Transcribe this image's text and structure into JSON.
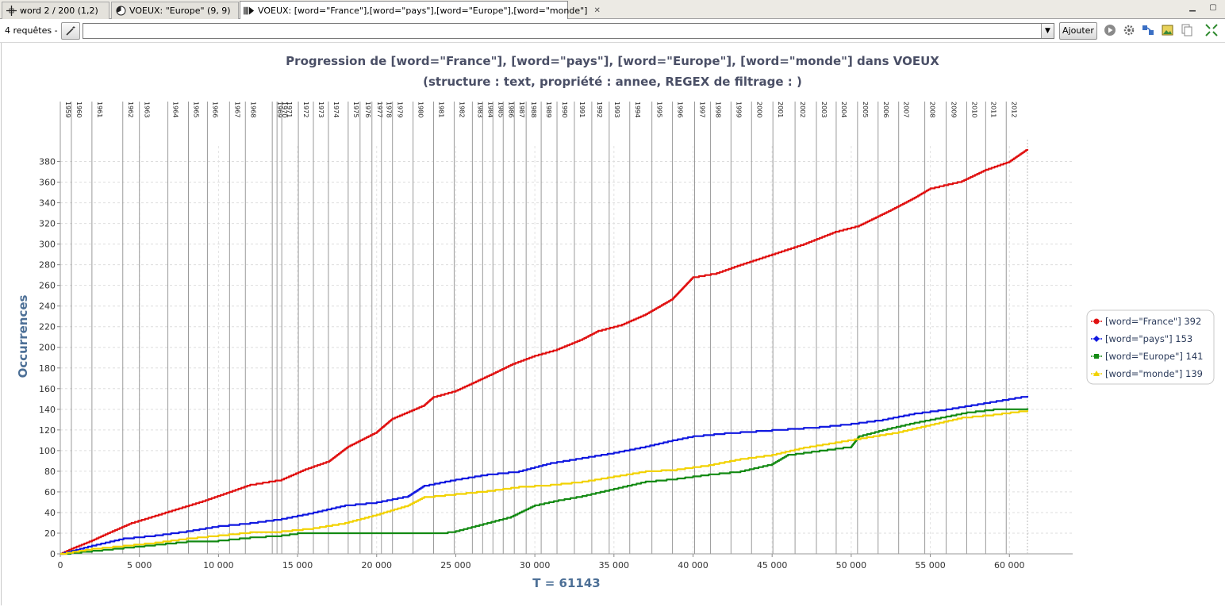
{
  "tabs": [
    {
      "label": "word 2 / 200 (1,2)",
      "icon": "crosshair-icon"
    },
    {
      "label": "VOEUX: \"Europe\" (9, 9)",
      "icon": "pie-icon"
    },
    {
      "label": "VOEUX: [word=\"France\"],[word=\"pays\"],[word=\"Europe\"],[word=\"monde\"]",
      "icon": "progression-icon",
      "close": "✕"
    }
  ],
  "toolbar": {
    "requests_label": "4 requêtes -",
    "query_value": "",
    "add_label": "Ajouter"
  },
  "chart_data": {
    "type": "line",
    "title": "Progression de [word=\"France\"], [word=\"pays\"], [word=\"Europe\"], [word=\"monde\"] dans VOEUX",
    "subtitle": "(structure :  text, propriété :  annee, REGEX de filtrage : )",
    "xlabel": "T = 61143",
    "ylabel": "Occurrences",
    "xlim": [
      0,
      64000
    ],
    "ylim": [
      0,
      395
    ],
    "x_ticks": [
      0,
      5000,
      10000,
      15000,
      20000,
      25000,
      30000,
      35000,
      40000,
      45000,
      50000,
      55000,
      60000
    ],
    "x_tick_labels": [
      "0",
      "5 000",
      "10 000",
      "15 000",
      "20 000",
      "25 000",
      "30 000",
      "35 000",
      "40 000",
      "45 000",
      "50 000",
      "55 000",
      "60 000"
    ],
    "y_ticks": [
      0,
      20,
      40,
      60,
      80,
      100,
      120,
      140,
      160,
      180,
      200,
      220,
      240,
      260,
      280,
      300,
      320,
      340,
      360,
      380
    ],
    "grid": true,
    "legend_position": "right",
    "year_markers": [
      {
        "label": "1959",
        "x": 0
      },
      {
        "label": "1960",
        "x": 700
      },
      {
        "label": "1961",
        "x": 2000
      },
      {
        "label": "1962",
        "x": 3950
      },
      {
        "label": "1963",
        "x": 5000
      },
      {
        "label": "1964",
        "x": 6800
      },
      {
        "label": "1965",
        "x": 8100
      },
      {
        "label": "1966",
        "x": 9300
      },
      {
        "label": "1967",
        "x": 10700
      },
      {
        "label": "1968",
        "x": 11700
      },
      {
        "label": "1969",
        "x": 13400
      },
      {
        "label": "1970",
        "x": 13700
      },
      {
        "label": "1971",
        "x": 14000
      },
      {
        "label": "1972",
        "x": 15050
      },
      {
        "label": "1973",
        "x": 16000
      },
      {
        "label": "1974",
        "x": 16950
      },
      {
        "label": "1975",
        "x": 18200
      },
      {
        "label": "1976",
        "x": 18950
      },
      {
        "label": "1977",
        "x": 19700
      },
      {
        "label": "1978",
        "x": 20300
      },
      {
        "label": "1979",
        "x": 21000
      },
      {
        "label": "1980",
        "x": 22300
      },
      {
        "label": "1981",
        "x": 23600
      },
      {
        "label": "1982",
        "x": 24900
      },
      {
        "label": "1983",
        "x": 26050
      },
      {
        "label": "1984",
        "x": 26700
      },
      {
        "label": "1985",
        "x": 27350
      },
      {
        "label": "1986",
        "x": 28000
      },
      {
        "label": "1987",
        "x": 28700
      },
      {
        "label": "1988",
        "x": 29450
      },
      {
        "label": "1989",
        "x": 30400
      },
      {
        "label": "1990",
        "x": 31400
      },
      {
        "label": "1991",
        "x": 32500
      },
      {
        "label": "1992",
        "x": 33600
      },
      {
        "label": "1993",
        "x": 34700
      },
      {
        "label": "1994",
        "x": 36000
      },
      {
        "label": "1995",
        "x": 37400
      },
      {
        "label": "1996",
        "x": 38700
      },
      {
        "label": "1997",
        "x": 40100
      },
      {
        "label": "1998",
        "x": 41100
      },
      {
        "label": "1999",
        "x": 42400
      },
      {
        "label": "2000",
        "x": 43700
      },
      {
        "label": "2001",
        "x": 45050
      },
      {
        "label": "2002",
        "x": 46450
      },
      {
        "label": "2003",
        "x": 47800
      },
      {
        "label": "2004",
        "x": 49050
      },
      {
        "label": "2005",
        "x": 50400
      },
      {
        "label": "2006",
        "x": 51700
      },
      {
        "label": "2007",
        "x": 53000
      },
      {
        "label": "2008",
        "x": 54650
      },
      {
        "label": "2009",
        "x": 56000
      },
      {
        "label": "2010",
        "x": 57300
      },
      {
        "label": "2011",
        "x": 58500
      },
      {
        "label": "2012",
        "x": 59800
      }
    ],
    "series": [
      {
        "name": "[word=\"France\"] 392",
        "color": "#e01010",
        "marker": "circle",
        "points": [
          [
            0,
            0
          ],
          [
            700,
            5
          ],
          [
            2000,
            13
          ],
          [
            3000,
            20
          ],
          [
            4500,
            30
          ],
          [
            6000,
            37
          ],
          [
            7500,
            44
          ],
          [
            9000,
            51
          ],
          [
            10700,
            60
          ],
          [
            12000,
            67
          ],
          [
            14000,
            72
          ],
          [
            15500,
            82
          ],
          [
            17000,
            90
          ],
          [
            18200,
            104
          ],
          [
            20000,
            118
          ],
          [
            21000,
            131
          ],
          [
            23000,
            144
          ],
          [
            23600,
            152
          ],
          [
            25000,
            158
          ],
          [
            26000,
            165
          ],
          [
            27400,
            175
          ],
          [
            28600,
            184
          ],
          [
            30000,
            192
          ],
          [
            31400,
            198
          ],
          [
            33000,
            208
          ],
          [
            34000,
            216
          ],
          [
            35500,
            222
          ],
          [
            37000,
            232
          ],
          [
            38700,
            247
          ],
          [
            40000,
            268
          ],
          [
            41500,
            272
          ],
          [
            43000,
            280
          ],
          [
            45000,
            290
          ],
          [
            47000,
            300
          ],
          [
            49000,
            312
          ],
          [
            50500,
            318
          ],
          [
            52500,
            333
          ],
          [
            54000,
            345
          ],
          [
            55000,
            354
          ],
          [
            57000,
            361
          ],
          [
            58500,
            372
          ],
          [
            60000,
            380
          ],
          [
            61143,
            392
          ]
        ]
      },
      {
        "name": "[word=\"pays\"] 153",
        "color": "#1018e0",
        "marker": "diamond",
        "points": [
          [
            0,
            0
          ],
          [
            2000,
            8
          ],
          [
            4000,
            15
          ],
          [
            6000,
            18
          ],
          [
            8000,
            22
          ],
          [
            10000,
            27
          ],
          [
            12000,
            30
          ],
          [
            14000,
            34
          ],
          [
            16000,
            40
          ],
          [
            18000,
            47
          ],
          [
            20000,
            50
          ],
          [
            22000,
            56
          ],
          [
            23000,
            66
          ],
          [
            25000,
            72
          ],
          [
            27000,
            77
          ],
          [
            29000,
            80
          ],
          [
            31000,
            88
          ],
          [
            33000,
            93
          ],
          [
            35000,
            98
          ],
          [
            37000,
            104
          ],
          [
            38700,
            110
          ],
          [
            40000,
            114
          ],
          [
            42000,
            117
          ],
          [
            45000,
            120
          ],
          [
            48000,
            123
          ],
          [
            50000,
            126
          ],
          [
            52000,
            130
          ],
          [
            54000,
            136
          ],
          [
            56000,
            140
          ],
          [
            58000,
            145
          ],
          [
            61143,
            153
          ]
        ]
      },
      {
        "name": "[word=\"Europe\"] 141",
        "color": "#138a13",
        "marker": "square",
        "points": [
          [
            0,
            0
          ],
          [
            2000,
            3
          ],
          [
            4000,
            6
          ],
          [
            6000,
            9
          ],
          [
            8000,
            12
          ],
          [
            10000,
            13
          ],
          [
            12000,
            16
          ],
          [
            14000,
            18
          ],
          [
            15000,
            20
          ],
          [
            18000,
            20
          ],
          [
            21000,
            20
          ],
          [
            24000,
            20
          ],
          [
            25000,
            22
          ],
          [
            26000,
            26
          ],
          [
            27000,
            30
          ],
          [
            28500,
            36
          ],
          [
            30000,
            47
          ],
          [
            31500,
            52
          ],
          [
            33000,
            56
          ],
          [
            35000,
            63
          ],
          [
            37000,
            70
          ],
          [
            39000,
            73
          ],
          [
            41000,
            77
          ],
          [
            43000,
            80
          ],
          [
            45000,
            87
          ],
          [
            46000,
            96
          ],
          [
            48000,
            100
          ],
          [
            50000,
            104
          ],
          [
            50500,
            114
          ],
          [
            52000,
            120
          ],
          [
            54000,
            127
          ],
          [
            56000,
            133
          ],
          [
            57300,
            137
          ],
          [
            59000,
            140
          ],
          [
            61143,
            141
          ]
        ]
      },
      {
        "name": "[word=\"monde\"] 139",
        "color": "#f2d200",
        "marker": "triangle",
        "points": [
          [
            0,
            0
          ],
          [
            2000,
            5
          ],
          [
            4000,
            8
          ],
          [
            6000,
            11
          ],
          [
            8000,
            15
          ],
          [
            10000,
            18
          ],
          [
            12000,
            21
          ],
          [
            14000,
            22
          ],
          [
            16000,
            25
          ],
          [
            18000,
            30
          ],
          [
            20000,
            38
          ],
          [
            22000,
            47
          ],
          [
            23000,
            55
          ],
          [
            25000,
            58
          ],
          [
            27000,
            61
          ],
          [
            29000,
            65
          ],
          [
            31000,
            67
          ],
          [
            33000,
            70
          ],
          [
            35000,
            75
          ],
          [
            37000,
            80
          ],
          [
            39000,
            82
          ],
          [
            41000,
            86
          ],
          [
            43000,
            92
          ],
          [
            45000,
            96
          ],
          [
            47000,
            103
          ],
          [
            49000,
            108
          ],
          [
            51000,
            113
          ],
          [
            53000,
            118
          ],
          [
            55000,
            125
          ],
          [
            57000,
            132
          ],
          [
            59000,
            135
          ],
          [
            61143,
            139
          ]
        ]
      }
    ]
  }
}
